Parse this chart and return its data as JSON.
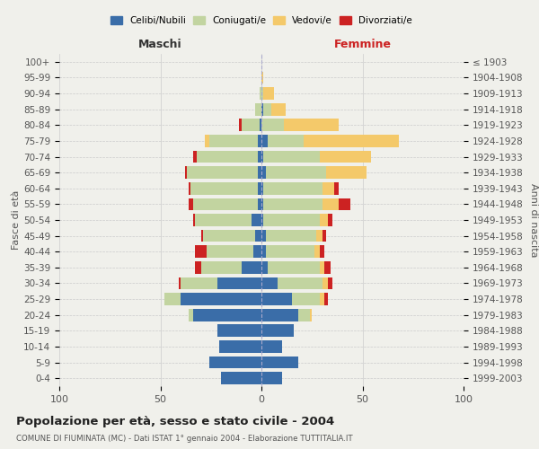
{
  "age_groups": [
    "0-4",
    "5-9",
    "10-14",
    "15-19",
    "20-24",
    "25-29",
    "30-34",
    "35-39",
    "40-44",
    "45-49",
    "50-54",
    "55-59",
    "60-64",
    "65-69",
    "70-74",
    "75-79",
    "80-84",
    "85-89",
    "90-94",
    "95-99",
    "100+"
  ],
  "birth_years": [
    "1999-2003",
    "1994-1998",
    "1989-1993",
    "1984-1988",
    "1979-1983",
    "1974-1978",
    "1969-1973",
    "1964-1968",
    "1959-1963",
    "1954-1958",
    "1949-1953",
    "1944-1948",
    "1939-1943",
    "1934-1938",
    "1929-1933",
    "1924-1928",
    "1919-1923",
    "1914-1918",
    "1909-1913",
    "1904-1908",
    "≤ 1903"
  ],
  "males": {
    "celibi": [
      20,
      26,
      21,
      22,
      34,
      40,
      22,
      10,
      4,
      3,
      5,
      2,
      2,
      2,
      2,
      2,
      1,
      0,
      0,
      0,
      0
    ],
    "coniugati": [
      0,
      0,
      0,
      0,
      2,
      8,
      18,
      20,
      23,
      26,
      28,
      32,
      33,
      35,
      30,
      24,
      9,
      3,
      1,
      0,
      0
    ],
    "vedovi": [
      0,
      0,
      0,
      0,
      0,
      0,
      0,
      0,
      0,
      0,
      0,
      0,
      0,
      0,
      0,
      2,
      0,
      0,
      0,
      0,
      0
    ],
    "divorziati": [
      0,
      0,
      0,
      0,
      0,
      0,
      1,
      3,
      6,
      1,
      1,
      2,
      1,
      1,
      2,
      0,
      1,
      0,
      0,
      0,
      0
    ]
  },
  "females": {
    "nubili": [
      10,
      18,
      10,
      16,
      18,
      15,
      8,
      3,
      2,
      2,
      1,
      1,
      1,
      2,
      1,
      3,
      0,
      1,
      0,
      0,
      0
    ],
    "coniugate": [
      0,
      0,
      0,
      0,
      6,
      14,
      22,
      26,
      24,
      25,
      28,
      29,
      29,
      30,
      28,
      18,
      11,
      4,
      1,
      0,
      0
    ],
    "vedove": [
      0,
      0,
      0,
      0,
      1,
      2,
      3,
      2,
      3,
      3,
      4,
      8,
      6,
      20,
      25,
      47,
      27,
      7,
      5,
      1,
      0
    ],
    "divorziate": [
      0,
      0,
      0,
      0,
      0,
      2,
      2,
      3,
      2,
      2,
      2,
      6,
      2,
      0,
      0,
      0,
      0,
      0,
      0,
      0,
      0
    ]
  },
  "colors": {
    "celibi": "#3a6da8",
    "coniugati": "#c2d4a0",
    "vedovi": "#f4c96a",
    "divorziati": "#cc2222"
  },
  "title": "Popolazione per età, sesso e stato civile - 2004",
  "subtitle": "COMUNE DI FIUMINATA (MC) - Dati ISTAT 1° gennaio 2004 - Elaborazione TUTTITALIA.IT",
  "xlabel_left": "Maschi",
  "xlabel_right": "Femmine",
  "ylabel_left": "Fasce di età",
  "ylabel_right": "Anni di nascita",
  "xlim": 100,
  "bg_color": "#f0f0eb",
  "grid_color": "#cccccc"
}
